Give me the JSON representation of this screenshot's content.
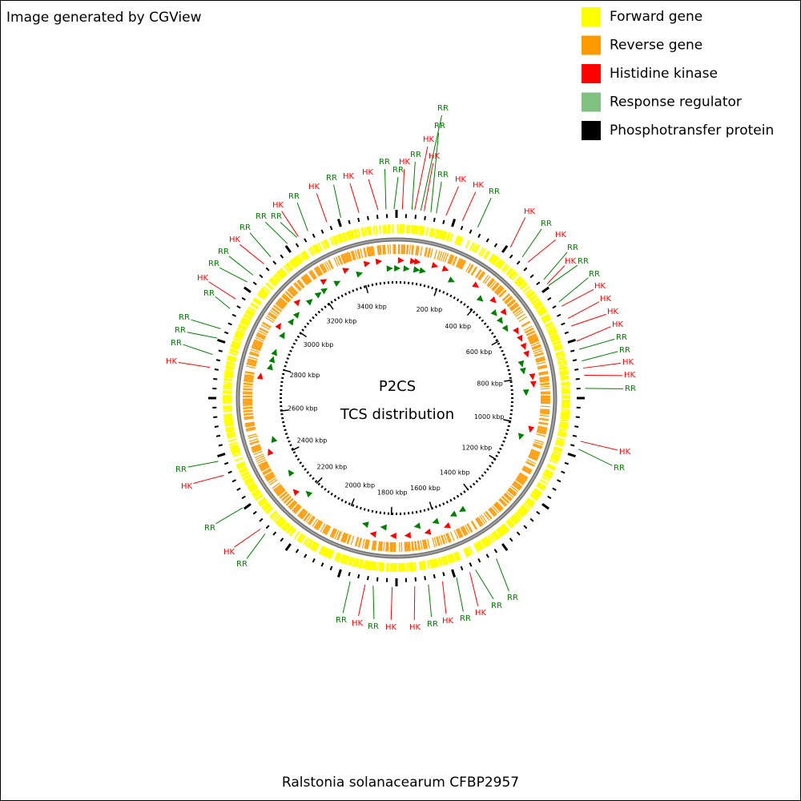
{
  "header": {
    "credit": "Image generated by CGView"
  },
  "legend": [
    {
      "label": "Forward gene",
      "color": "#ffff00"
    },
    {
      "label": "Reverse gene",
      "color": "#ff9900"
    },
    {
      "label": "Histidine kinase",
      "color": "#ff0000"
    },
    {
      "label": "Response regulator",
      "color": "#80c080"
    },
    {
      "label": "Phosphotransfer protein",
      "color": "#000000"
    }
  ],
  "map": {
    "title": "P2CS",
    "subtitle": "TCS distribution",
    "ruler_labels": [
      "200 kbp",
      "400 kbp",
      "600 kbp",
      "800 kbp",
      "1000 kbp",
      "1200 kbp",
      "1400 kbp",
      "1600 kbp",
      "1800 kbp",
      "2000 kbp",
      "2200 kbp",
      "2400 kbp",
      "2600 kbp",
      "2800 kbp",
      "3000 kbp",
      "3200 kbp",
      "3400 kbp"
    ],
    "feature_labels": [
      {
        "text": "RR",
        "color": "#008000"
      },
      {
        "text": "RR",
        "color": "#008000"
      },
      {
        "text": "HK",
        "color": "#ff0000"
      },
      {
        "text": "RR",
        "color": "#008000"
      },
      {
        "text": "HK",
        "color": "#ff0000"
      },
      {
        "text": "HK",
        "color": "#ff0000"
      },
      {
        "text": "RR",
        "color": "#008000"
      },
      {
        "text": "HK",
        "color": "#ff0000"
      },
      {
        "text": "HK",
        "color": "#ff0000"
      },
      {
        "text": "RR",
        "color": "#008000"
      },
      {
        "text": "HK",
        "color": "#ff0000"
      },
      {
        "text": "RR",
        "color": "#008000"
      },
      {
        "text": "HK",
        "color": "#ff0000"
      },
      {
        "text": "RR",
        "color": "#008000"
      },
      {
        "text": "HK",
        "color": "#ff0000"
      },
      {
        "text": "RR",
        "color": "#008000"
      },
      {
        "text": "RR",
        "color": "#008000"
      },
      {
        "text": "HK",
        "color": "#ff0000"
      },
      {
        "text": "HK",
        "color": "#ff0000"
      },
      {
        "text": "HK",
        "color": "#ff0000"
      },
      {
        "text": "HK",
        "color": "#ff0000"
      },
      {
        "text": "RR",
        "color": "#008000"
      },
      {
        "text": "RR",
        "color": "#008000"
      },
      {
        "text": "HK",
        "color": "#ff0000"
      },
      {
        "text": "HK",
        "color": "#ff0000"
      },
      {
        "text": "RR",
        "color": "#008000"
      },
      {
        "text": "HK",
        "color": "#ff0000"
      },
      {
        "text": "RR",
        "color": "#008000"
      },
      {
        "text": "RR",
        "color": "#008000"
      },
      {
        "text": "RR",
        "color": "#008000"
      },
      {
        "text": "HK",
        "color": "#ff0000"
      },
      {
        "text": "HK",
        "color": "#ff0000"
      },
      {
        "text": "RR",
        "color": "#008000"
      },
      {
        "text": "HK",
        "color": "#ff0000"
      },
      {
        "text": "RR",
        "color": "#008000"
      },
      {
        "text": "HK",
        "color": "#ff0000"
      },
      {
        "text": "RR",
        "color": "#008000"
      },
      {
        "text": "RR",
        "color": "#008000"
      },
      {
        "text": "RR",
        "color": "#008000"
      },
      {
        "text": "HK",
        "color": "#ff0000"
      },
      {
        "text": "RR",
        "color": "#008000"
      },
      {
        "text": "RR",
        "color": "#008000"
      },
      {
        "text": "HK",
        "color": "#ff0000"
      },
      {
        "text": "RR",
        "color": "#008000"
      },
      {
        "text": "RR",
        "color": "#008000"
      },
      {
        "text": "RR",
        "color": "#008000"
      },
      {
        "text": "RR",
        "color": "#008000"
      },
      {
        "text": "HK",
        "color": "#ff0000"
      },
      {
        "text": "RR",
        "color": "#008000"
      },
      {
        "text": "HK",
        "color": "#ff0000"
      },
      {
        "text": "RR",
        "color": "#008000"
      },
      {
        "text": "HK",
        "color": "#ff0000"
      },
      {
        "text": "RR",
        "color": "#008000"
      },
      {
        "text": "RR",
        "color": "#008000"
      },
      {
        "text": "HK",
        "color": "#ff0000"
      },
      {
        "text": "RR",
        "color": "#008000"
      },
      {
        "text": "HK",
        "color": "#ff0000"
      },
      {
        "text": "HK",
        "color": "#ff0000"
      },
      {
        "text": "RR",
        "color": "#008000"
      },
      {
        "text": "HK",
        "color": "#ff0000"
      },
      {
        "text": "RR",
        "color": "#008000"
      },
      {
        "text": "HK",
        "color": "#ff0000"
      },
      {
        "text": "RR",
        "color": "#008000"
      },
      {
        "text": "RR",
        "color": "#008000"
      }
    ]
  },
  "footer": {
    "organism": "Ralstonia solanacearum CFBP2957"
  }
}
